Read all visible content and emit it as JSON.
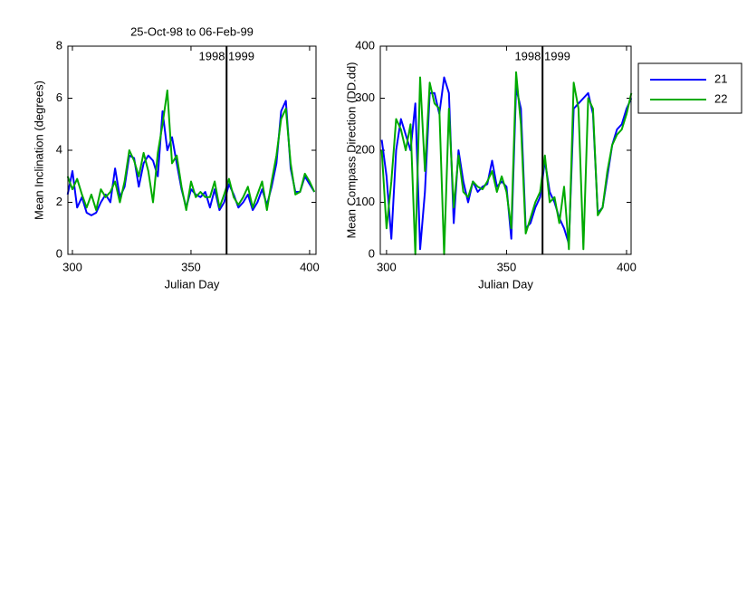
{
  "chart_data": [
    {
      "type": "line",
      "title": "25-Oct-98 to 06-Feb-99",
      "xlabel": "Julian Day",
      "ylabel": "Mean Inclination  (degrees)",
      "x": [
        298,
        300,
        302,
        304,
        306,
        308,
        310,
        312,
        314,
        316,
        318,
        320,
        322,
        324,
        326,
        328,
        330,
        332,
        334,
        336,
        338,
        340,
        342,
        344,
        346,
        348,
        350,
        352,
        354,
        356,
        358,
        360,
        362,
        364,
        366,
        368,
        370,
        372,
        374,
        376,
        378,
        380,
        382,
        384,
        386,
        388,
        390,
        392,
        394,
        396,
        398,
        400,
        402
      ],
      "series": [
        {
          "color": "#0000ff",
          "values": [
            2.3,
            3.2,
            1.8,
            2.2,
            1.6,
            1.5,
            1.6,
            2.0,
            2.3,
            2.0,
            3.3,
            2.2,
            2.6,
            3.8,
            3.7,
            2.6,
            3.5,
            3.8,
            3.6,
            3.0,
            5.5,
            4.0,
            4.5,
            3.5,
            2.5,
            1.8,
            2.5,
            2.3,
            2.2,
            2.4,
            1.8,
            2.5,
            1.7,
            2.0,
            2.7,
            2.3,
            1.8,
            2.0,
            2.3,
            1.7,
            2.0,
            2.5,
            1.9,
            2.6,
            3.5,
            5.5,
            5.9,
            3.3,
            2.4,
            2.4,
            3.0,
            2.7,
            2.4
          ]
        },
        {
          "color": "#00aa00",
          "values": [
            3.0,
            2.5,
            2.9,
            2.3,
            1.8,
            2.3,
            1.7,
            2.5,
            2.2,
            2.4,
            2.8,
            2.0,
            2.8,
            4.0,
            3.6,
            3.0,
            3.9,
            3.2,
            2.0,
            3.9,
            5.0,
            6.3,
            3.5,
            3.8,
            2.6,
            1.7,
            2.8,
            2.2,
            2.4,
            2.2,
            2.2,
            2.8,
            1.8,
            2.3,
            2.9,
            2.2,
            1.9,
            2.2,
            2.6,
            1.8,
            2.3,
            2.8,
            1.7,
            2.8,
            3.8,
            5.2,
            5.6,
            3.5,
            2.3,
            2.4,
            3.1,
            2.8,
            2.4
          ]
        }
      ],
      "xlim": [
        298.1,
        402.7
      ],
      "ylim": [
        0,
        8
      ],
      "xticks": [
        300,
        350,
        400
      ],
      "yticks": [
        0,
        2,
        4,
        6,
        8
      ],
      "vline": 365,
      "annotation": "1998 1999"
    },
    {
      "type": "line",
      "xlabel": "Julian Day",
      "ylabel": "Mean Compass Direction (DD.dd)",
      "x": [
        298,
        300,
        302,
        304,
        306,
        308,
        310,
        312,
        314,
        316,
        318,
        320,
        322,
        324,
        326,
        328,
        330,
        332,
        334,
        336,
        338,
        340,
        342,
        344,
        346,
        348,
        350,
        352,
        354,
        356,
        358,
        360,
        362,
        364,
        366,
        368,
        370,
        372,
        374,
        376,
        378,
        380,
        382,
        384,
        386,
        388,
        390,
        392,
        394,
        396,
        398,
        400,
        402
      ],
      "series": [
        {
          "name": "21",
          "color": "#0000ff",
          "values": [
            220,
            150,
            30,
            200,
            260,
            230,
            200,
            290,
            10,
            120,
            310,
            310,
            270,
            340,
            310,
            60,
            200,
            140,
            100,
            140,
            120,
            130,
            135,
            180,
            130,
            140,
            130,
            30,
            320,
            280,
            50,
            60,
            90,
            110,
            180,
            120,
            100,
            70,
            50,
            20,
            280,
            290,
            300,
            310,
            270,
            80,
            90,
            150,
            210,
            240,
            250,
            280,
            300
          ]
        },
        {
          "name": "22",
          "color": "#00aa00",
          "values": [
            200,
            50,
            140,
            260,
            240,
            200,
            250,
            0,
            340,
            160,
            330,
            290,
            280,
            0,
            280,
            90,
            190,
            120,
            110,
            140,
            130,
            125,
            140,
            160,
            120,
            150,
            120,
            50,
            350,
            250,
            40,
            70,
            100,
            120,
            190,
            100,
            110,
            60,
            130,
            10,
            330,
            280,
            10,
            300,
            280,
            75,
            90,
            160,
            210,
            230,
            240,
            270,
            310
          ]
        }
      ],
      "xlim": [
        297.4,
        401.9
      ],
      "ylim": [
        0,
        400
      ],
      "xticks": [
        300,
        350,
        400
      ],
      "yticks": [
        0,
        100,
        200,
        300,
        400
      ],
      "vline": 365,
      "annotation": "1998 1999",
      "legend": "outside right"
    }
  ]
}
